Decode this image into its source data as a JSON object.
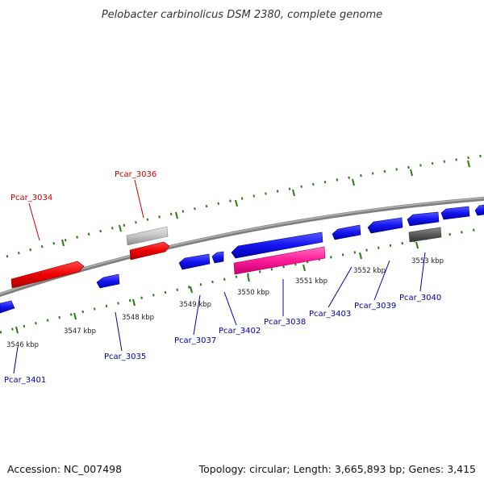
{
  "title": "Pelobacter carbinolicus DSM 2380, complete genome",
  "footer": {
    "accession": "Accession: NC_007498",
    "topology": "Topology: circular; Length: 3,665,893 bp; Genes: 3,415"
  },
  "colors": {
    "forward_gene": "#e00000",
    "reverse_gene": "#1010f0",
    "rna_gene": "#ff1493",
    "grey_gene": "#bbbbbb",
    "dark_gene": "#555555",
    "backbone": "#888888",
    "tick": "#2a7a12",
    "forward_label": "#cc0000",
    "reverse_label": "#0000aa"
  },
  "kbp_labels": [
    "3546 kbp",
    "3547 kbp",
    "3548 kbp",
    "3549 kbp",
    "3550 kbp",
    "3551 kbp",
    "3552 kbp",
    "3553 kbp"
  ],
  "gene_labels": {
    "pcar_3034": "Pcar_3034",
    "pcar_3036": "Pcar_3036",
    "pcar_3401": "Pcar_3401",
    "pcar_3035": "Pcar_3035",
    "pcar_3037": "Pcar_3037",
    "pcar_3402": "Pcar_3402",
    "pcar_3038": "Pcar_3038",
    "pcar_3403": "Pcar_3403",
    "pcar_3039": "Pcar_3039",
    "pcar_3040": "Pcar_3040"
  }
}
